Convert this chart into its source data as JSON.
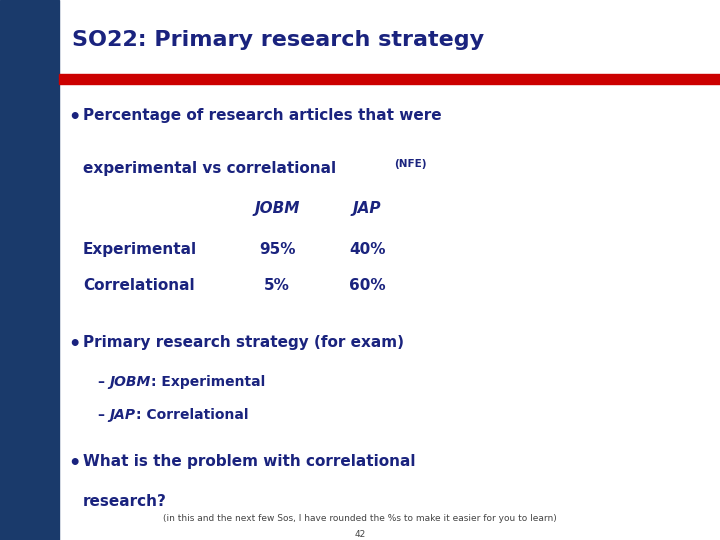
{
  "title": "SO22: Primary research strategy",
  "title_color": "#1a237e",
  "title_fontsize": 16,
  "bg_color": "#ffffff",
  "left_bar_color": "#1a3a6b",
  "header_red_color": "#cc0000",
  "left_bar_width": 0.082,
  "bullet1_line1": "Percentage of research articles that were",
  "bullet1_line2": "experimental vs correlational ",
  "bullet1_line2_small": "(NFE)",
  "table_header_jobm": "JOBM",
  "table_header_jap": "JAP",
  "table_row1_label": "Experimental",
  "table_row1_jobm": "95%",
  "table_row1_jap": "40%",
  "table_row2_label": "Correlational",
  "table_row2_jobm": "5%",
  "table_row2_jap": "60%",
  "bullet2_text": "Primary research strategy (for exam)",
  "sub1_italic": "JOBM",
  "sub1_rest": ": Experimental",
  "sub2_italic": "JAP",
  "sub2_rest": ": Correlational",
  "bullet3_line1": "What is the problem with correlational",
  "bullet3_line2": "research?",
  "footnote": "(in this and the next few Sos, I have rounded the %s to make it easier for you to learn)",
  "page_number": "42",
  "text_color": "#1a237e",
  "footnote_color": "#444444",
  "main_fontsize": 11,
  "sub_fontsize": 10,
  "small_fontsize": 7.5,
  "footnote_fontsize": 6.5,
  "bullet_fontsize": 14
}
